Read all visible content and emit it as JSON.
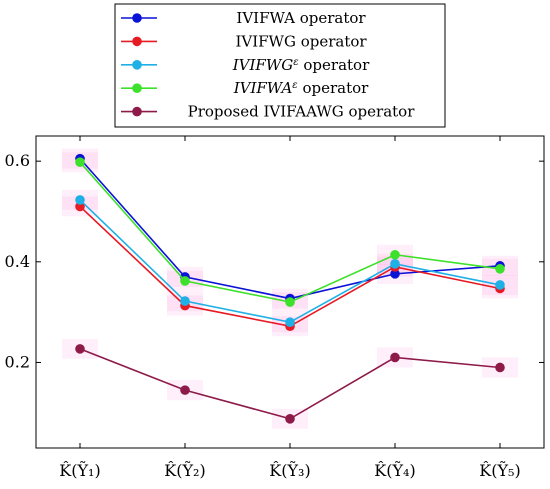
{
  "chart_data": {
    "type": "line",
    "categories": [
      "K̂(Ỹ₁)",
      "K̂(Ỹ₂)",
      "K̂(Ỹ₃)",
      "K̂(Ỹ₄)",
      "K̂(Ỹ₅)"
    ],
    "ylim": [
      0.03,
      0.65
    ],
    "yticks": [
      0.2,
      0.4,
      0.6
    ],
    "ytick_labels": [
      "0.2",
      "0.4",
      "0.6"
    ],
    "grid": false,
    "legend_position": "top-center",
    "series": [
      {
        "name": "IVIFWA operator",
        "color": "#0a12d6",
        "values": [
          0.605,
          0.37,
          0.327,
          0.376,
          0.392
        ]
      },
      {
        "name": "IVIFWG operator",
        "color": "#e61b23",
        "values": [
          0.51,
          0.313,
          0.272,
          0.39,
          0.347
        ]
      },
      {
        "name": "IVIFWG^ε operator",
        "color": "#1fb0e6",
        "values": [
          0.523,
          0.322,
          0.28,
          0.396,
          0.354
        ]
      },
      {
        "name": "IVIFWA^ε operator",
        "color": "#3de02a",
        "values": [
          0.598,
          0.362,
          0.32,
          0.414,
          0.386
        ]
      },
      {
        "name": "Proposed IVIFAAWG operator",
        "color": "#8e1a4a",
        "values": [
          0.227,
          0.145,
          0.088,
          0.21,
          0.19
        ]
      }
    ]
  }
}
